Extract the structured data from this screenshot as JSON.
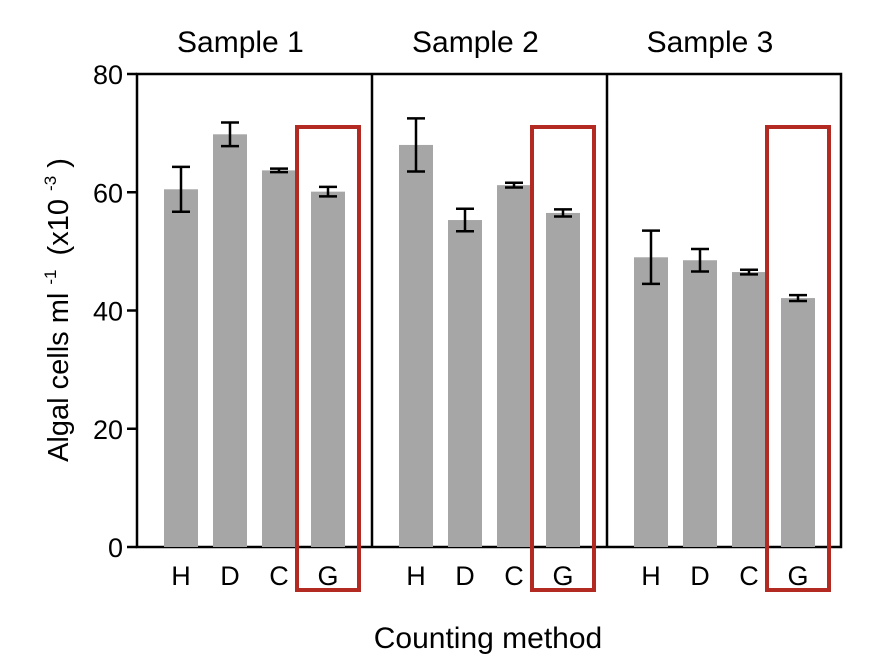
{
  "chart_data": {
    "type": "bar",
    "title": "",
    "xlabel": "Counting method",
    "ylabel": "Algal cells ml",
    "ylabel_sup": "-1",
    "ylabel_suffix": "(x10",
    "ylabel_suffix_sup": "-3",
    "ylabel_close": ")",
    "ylim": [
      0,
      80
    ],
    "yticks": [
      "0",
      "20",
      "40",
      "60",
      "80"
    ],
    "ytick_values": [
      0,
      20,
      40,
      60,
      80
    ],
    "categories": [
      "H",
      "D",
      "C",
      "G"
    ],
    "highlighted_category": "G",
    "panels": [
      {
        "name": "Sample 1",
        "values": [
          60.5,
          69.8,
          63.7,
          60.1
        ],
        "errors": [
          3.8,
          2.0,
          0.3,
          0.8
        ]
      },
      {
        "name": "Sample 2",
        "values": [
          68.0,
          55.3,
          61.2,
          56.5
        ],
        "errors": [
          4.5,
          1.9,
          0.4,
          0.6
        ]
      },
      {
        "name": "Sample 3",
        "values": [
          49.0,
          48.5,
          46.5,
          42.1
        ],
        "errors": [
          4.5,
          1.9,
          0.4,
          0.5
        ]
      }
    ],
    "grid": false,
    "legend": "none"
  },
  "colors": {
    "bar": "#a6a6a6",
    "axis": "#000000",
    "error": "#000000",
    "highlight": "#b22a22"
  }
}
